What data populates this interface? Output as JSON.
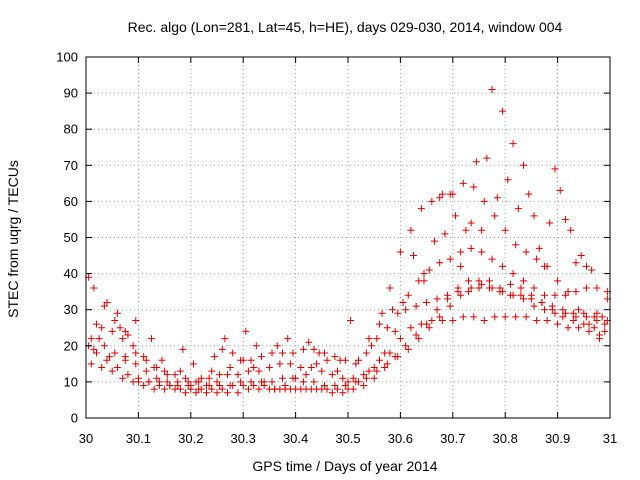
{
  "chart_data": {
    "type": "scatter",
    "title": "Rec. algo (Lon=281, Lat=45, h=HE), days 029-030, 2014, window 004",
    "xlabel": "GPS time / Days of year 2014",
    "ylabel": "STEC from uqrg / TECUs",
    "xlim": [
      30,
      31
    ],
    "ylim": [
      0,
      100
    ],
    "xticks": [
      30,
      30.1,
      30.2,
      30.3,
      30.4,
      30.5,
      30.6,
      30.7,
      30.8,
      30.9,
      31
    ],
    "xtick_labels": [
      "30",
      "30.1",
      "30.2",
      "30.3",
      "30.4",
      "30.5",
      "30.6",
      "30.7",
      "30.8",
      "30.9",
      "31"
    ],
    "yticks": [
      0,
      10,
      20,
      30,
      40,
      50,
      60,
      70,
      80,
      90,
      100
    ],
    "ytick_labels": [
      "0",
      "10",
      "20",
      "30",
      "40",
      "50",
      "60",
      "70",
      "80",
      "90",
      "100"
    ],
    "grid": true,
    "marker": "plus",
    "color": "#e00000",
    "series": [
      {
        "name": "STEC",
        "x": [
          30.005,
          30.02,
          30.04,
          30.06,
          30.08,
          30.1,
          30.12,
          30.14,
          30.16,
          30.18,
          30.2,
          30.22,
          30.24,
          30.26,
          30.28,
          30.3,
          30.32,
          30.34,
          30.36,
          30.38,
          30.4,
          30.42,
          30.44,
          30.46,
          30.48,
          30.5,
          30.52,
          30.54,
          30.56,
          30.58,
          30.6,
          30.62,
          30.64,
          30.66,
          30.68,
          30.7,
          30.72,
          30.74,
          30.76,
          30.78,
          30.8,
          30.82,
          30.84,
          30.86,
          30.88,
          30.9,
          30.92,
          30.94,
          30.96,
          30.98,
          30.005,
          30.02,
          30.04,
          30.06,
          30.08,
          30.1,
          30.12,
          30.14,
          30.16,
          30.18,
          30.2,
          30.22,
          30.24,
          30.26,
          30.28,
          30.3,
          30.32,
          30.34,
          30.36,
          30.38,
          30.4,
          30.42,
          30.44,
          30.46,
          30.48,
          30.5,
          30.52,
          30.54,
          30.56,
          30.58,
          30.6,
          30.62,
          30.64,
          30.66,
          30.68,
          30.7,
          30.72,
          30.74,
          30.76,
          30.78,
          30.8,
          30.82,
          30.84,
          30.86,
          30.88,
          30.9,
          30.92,
          30.94,
          30.96,
          30.98,
          30.01,
          30.03,
          30.05,
          30.07,
          30.09,
          30.11,
          30.13,
          30.15,
          30.17,
          30.19,
          30.21,
          30.23,
          30.25,
          30.27,
          30.29,
          30.31,
          30.33,
          30.35,
          30.37,
          30.39,
          30.41,
          30.43,
          30.45,
          30.47,
          30.49,
          30.51,
          30.53,
          30.55,
          30.57,
          30.59,
          30.61,
          30.63,
          30.65,
          30.67,
          30.69,
          30.71,
          30.73,
          30.75,
          30.77,
          30.79,
          30.81,
          30.83,
          30.85,
          30.87,
          30.89,
          30.91,
          30.93,
          30.95,
          30.97,
          30.99,
          30.01,
          30.03,
          30.05,
          30.07,
          30.09,
          30.11,
          30.13,
          30.15,
          30.17,
          30.19,
          30.21,
          30.23,
          30.25,
          30.27,
          30.29,
          30.31,
          30.33,
          30.35,
          30.37,
          30.39,
          30.41,
          30.43,
          30.45,
          30.47,
          30.49,
          30.51,
          30.53,
          30.55,
          30.57,
          30.59,
          30.61,
          30.63,
          30.65,
          30.67,
          30.69,
          30.71,
          30.73,
          30.75,
          30.77,
          30.79,
          30.81,
          30.83,
          30.85,
          30.87,
          30.89,
          30.91,
          30.93,
          30.95,
          30.97,
          30.99,
          30.015,
          30.035,
          30.055,
          30.075,
          30.095,
          30.115,
          30.135,
          30.155,
          30.175,
          30.195,
          30.215,
          30.235,
          30.255,
          30.275,
          30.295,
          30.315,
          30.335,
          30.355,
          30.375,
          30.395,
          30.415,
          30.435,
          30.455,
          30.475,
          30.495,
          30.515,
          30.535,
          30.555,
          30.575,
          30.595,
          30.615,
          30.635,
          30.655,
          30.675,
          30.695,
          30.715,
          30.735,
          30.755,
          30.775,
          30.795,
          30.815,
          30.835,
          30.855,
          30.875,
          30.895,
          30.915,
          30.935,
          30.955,
          30.975,
          30.995,
          30.015,
          30.035,
          30.055,
          30.075,
          30.095,
          30.115,
          30.135,
          30.155,
          30.175,
          30.195,
          30.215,
          30.235,
          30.255,
          30.275,
          30.295,
          30.315,
          30.335,
          30.355,
          30.375,
          30.395,
          30.415,
          30.435,
          30.455,
          30.475,
          30.495,
          30.515,
          30.535,
          30.555,
          30.575,
          30.595,
          30.615,
          30.635,
          30.655,
          30.675,
          30.695,
          30.715,
          30.735,
          30.755,
          30.775,
          30.795,
          30.815,
          30.835,
          30.855,
          30.875,
          30.895,
          30.915,
          30.935,
          30.955,
          30.975,
          30.995,
          30.025,
          30.065,
          30.125,
          30.185,
          30.245,
          30.305,
          30.365,
          30.425,
          30.485,
          30.545,
          30.585,
          30.605,
          30.645,
          30.665,
          30.685,
          30.705,
          30.725,
          30.745,
          30.765,
          30.785,
          30.805,
          30.825,
          30.845,
          30.865,
          30.885,
          30.905,
          30.925,
          30.945,
          30.965,
          30.985,
          30.045,
          30.095,
          30.145,
          30.205,
          30.265,
          30.325,
          30.385,
          30.445,
          30.505,
          30.565,
          30.625,
          30.645,
          30.675,
          30.695,
          30.715,
          30.735,
          30.755,
          30.775,
          30.795,
          30.815,
          30.835,
          30.855,
          30.875,
          30.895,
          30.915,
          30.935,
          30.955,
          30.975,
          30.995,
          30.075
        ],
        "y": [
          39,
          26,
          32,
          29,
          23,
          11,
          10,
          10,
          9,
          13,
          9,
          11,
          13,
          19,
          18,
          16,
          14,
          10,
          8,
          9,
          11,
          12,
          15,
          16,
          13,
          10,
          16,
          22,
          26,
          36,
          46,
          52,
          58,
          60,
          62,
          62,
          65,
          64,
          60,
          56,
          52,
          48,
          46,
          44,
          42,
          38,
          35,
          30,
          26,
          23,
          20,
          18,
          16,
          14,
          12,
          10,
          10,
          9,
          9,
          8,
          8,
          8,
          8,
          8,
          9,
          9,
          9,
          9,
          8,
          8,
          8,
          8,
          8,
          8,
          8,
          8,
          10,
          13,
          16,
          18,
          22,
          25,
          26,
          27,
          27,
          27,
          28,
          28,
          27,
          28,
          28,
          28,
          28,
          27,
          27,
          26,
          25,
          25,
          24,
          22,
          22,
          25,
          24,
          22,
          20,
          17,
          14,
          13,
          12,
          11,
          10,
          9,
          10,
          12,
          12,
          13,
          13,
          14,
          15,
          15,
          14,
          14,
          13,
          12,
          11,
          11,
          12,
          14,
          18,
          24,
          30,
          31,
          32,
          33,
          34,
          35,
          35,
          36,
          36,
          35,
          34,
          34,
          33,
          32,
          31,
          30,
          29,
          29,
          28,
          26,
          15,
          14,
          13,
          11,
          10,
          9,
          8,
          8,
          8,
          7,
          7,
          7,
          7,
          7,
          7,
          8,
          8,
          8,
          8,
          8,
          8,
          8,
          8,
          7,
          7,
          8,
          9,
          11,
          14,
          17,
          20,
          23,
          26,
          30,
          33,
          36,
          38,
          38,
          38,
          36,
          37,
          36,
          34,
          32,
          30,
          28,
          27,
          26,
          25,
          24,
          36,
          31,
          27,
          24,
          18,
          16,
          14,
          12,
          10,
          10,
          10,
          11,
          12,
          14,
          16,
          16,
          17,
          18,
          18,
          18,
          19,
          19,
          18,
          17,
          16,
          15,
          18,
          22,
          25,
          29,
          34,
          38,
          41,
          43,
          44,
          46,
          47,
          46,
          44,
          42,
          40,
          38,
          36,
          34,
          34,
          34,
          35,
          36,
          36,
          35,
          19,
          20,
          18,
          17,
          15,
          13,
          11,
          10,
          9,
          9,
          8,
          9,
          9,
          9,
          10,
          10,
          10,
          10,
          11,
          11,
          10,
          10,
          9,
          9,
          9,
          10,
          11,
          13,
          15,
          17,
          19,
          22,
          25,
          28,
          31,
          34,
          36,
          37,
          36,
          35,
          34,
          33,
          31,
          30,
          29,
          29,
          28,
          28,
          27,
          27,
          22,
          25,
          22,
          19,
          17,
          24,
          20,
          21,
          16,
          20,
          30,
          32,
          40,
          49,
          51,
          56,
          52,
          71,
          72,
          61,
          66,
          58,
          62,
          47,
          54,
          63,
          52,
          45,
          41,
          28,
          17,
          27,
          16,
          15,
          22,
          20,
          22,
          18,
          27,
          29,
          45,
          38,
          61,
          62,
          42,
          54,
          52,
          91,
          85,
          76,
          70,
          56,
          42,
          69,
          55,
          43,
          42,
          29,
          33,
          16
        ]
      }
    ]
  }
}
